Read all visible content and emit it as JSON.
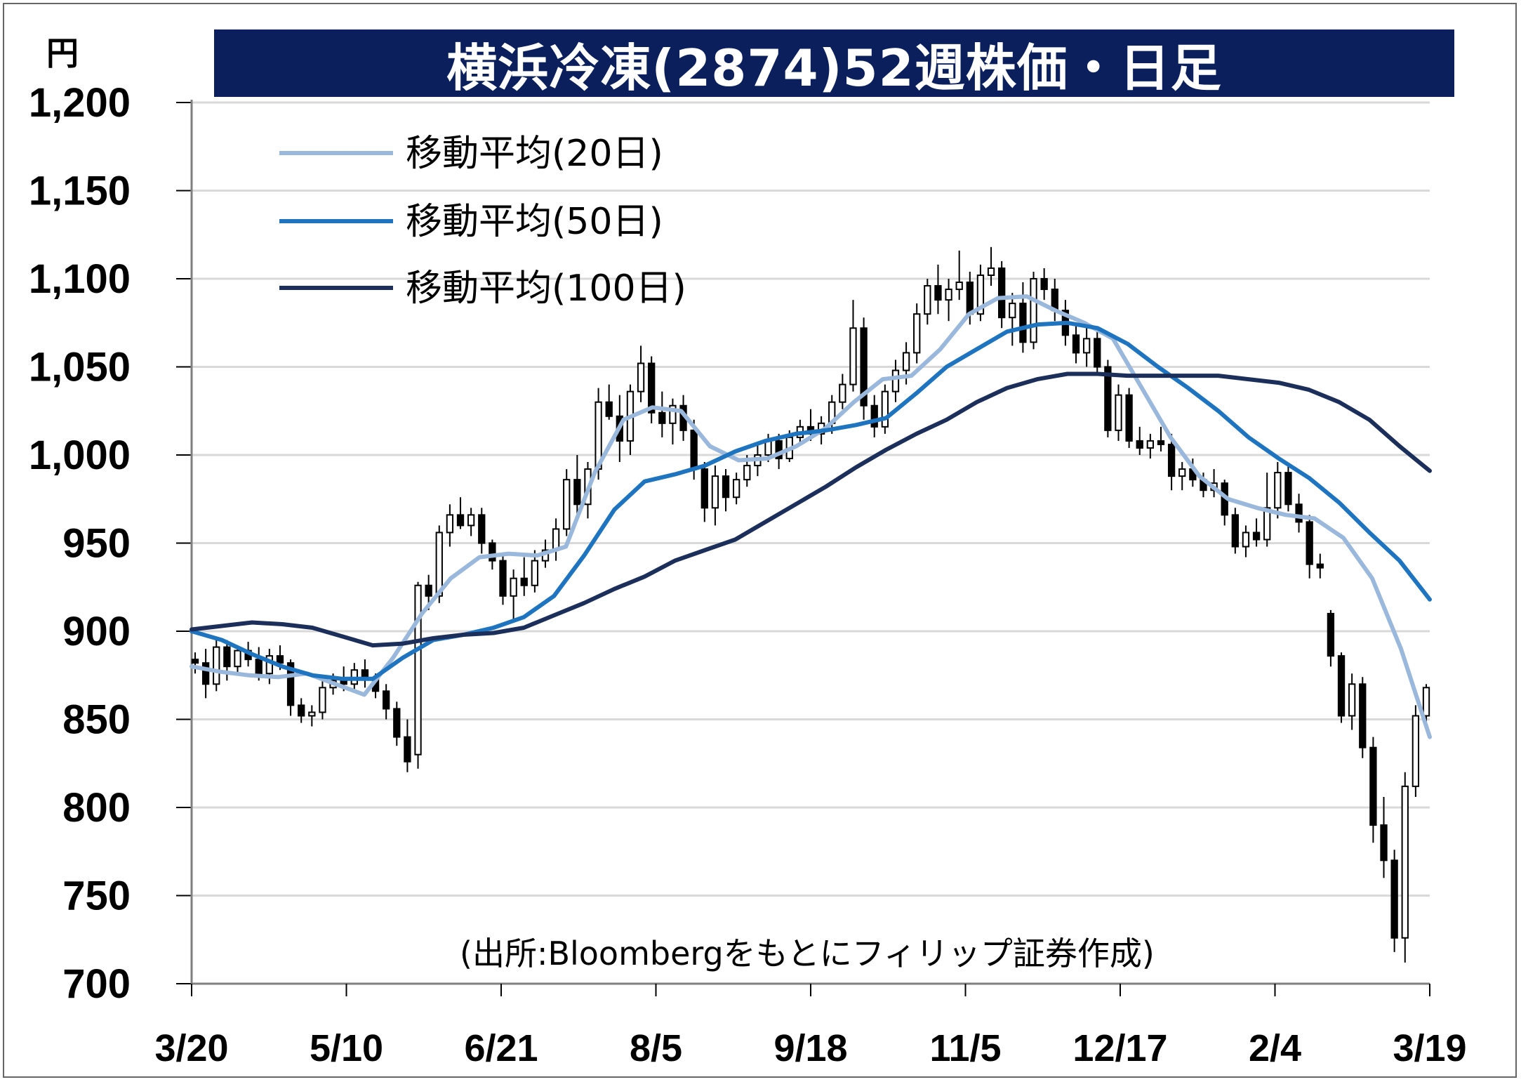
{
  "header": {
    "title": "横浜冷凍(2874)52週株価・日足",
    "unit": "円"
  },
  "source_note": "(出所:Bloombergをもとにフィリップ証券作成)",
  "colors": {
    "title_bg": "#0a1f5c",
    "ma20": "#9ab8dc",
    "ma50": "#1f74c0",
    "ma100": "#1b2f5a",
    "candle": "#000000",
    "grid": "#d9d9d9"
  },
  "chart_data": {
    "type": "candlestick",
    "title": "横浜冷凍(2874)52週株価・日足",
    "ylabel": "円",
    "ylim": [
      700,
      1200
    ],
    "yticks": [
      700,
      750,
      800,
      850,
      900,
      950,
      1000,
      1050,
      1100,
      1150,
      1200
    ],
    "ytick_labels": [
      "700",
      "750",
      "800",
      "850",
      "900",
      "950",
      "1,000",
      "1,050",
      "1,100",
      "1,150",
      "1,200"
    ],
    "xticks": [
      "3/20",
      "5/10",
      "6/21",
      "8/5",
      "9/18",
      "11/5",
      "12/17",
      "2/4",
      "3/19"
    ],
    "grid": true,
    "legend_position": "top-left",
    "series": [
      {
        "name": "移動平均(20日)",
        "type": "line",
        "color": "#9ab8dc",
        "values": [
          880,
          877,
          875,
          874,
          876,
          870,
          864,
          885,
          910,
          930,
          942,
          944,
          943,
          948,
          990,
          1020,
          1027,
          1025,
          1005,
          997,
          998,
          1005,
          1015,
          1030,
          1043,
          1045,
          1060,
          1080,
          1089,
          1090,
          1082,
          1075,
          1066,
          1038,
          1010,
          988,
          975,
          970,
          966,
          964,
          953,
          930,
          890,
          840
        ]
      },
      {
        "name": "移動平均(50日)",
        "type": "line",
        "color": "#1f74c0",
        "values": [
          900,
          895,
          887,
          880,
          875,
          873,
          873,
          885,
          895,
          898,
          902,
          908,
          920,
          943,
          969,
          985,
          989,
          994,
          1002,
          1008,
          1012,
          1014,
          1017,
          1021,
          1035,
          1050,
          1060,
          1070,
          1074,
          1075,
          1072,
          1063,
          1050,
          1038,
          1025,
          1010,
          998,
          987,
          973,
          956,
          940,
          918
        ]
      },
      {
        "name": "移動平均(100日)",
        "type": "line",
        "color": "#1b2f5a",
        "values": [
          901,
          903,
          905,
          904,
          902,
          897,
          892,
          893,
          896,
          898,
          899,
          902,
          909,
          916,
          924,
          931,
          940,
          946,
          952,
          962,
          972,
          982,
          993,
          1003,
          1012,
          1020,
          1030,
          1038,
          1043,
          1046,
          1046,
          1045,
          1045,
          1045,
          1045,
          1043,
          1041,
          1037,
          1030,
          1020,
          1005,
          991
        ]
      }
    ],
    "candles": [
      [
        884,
        888,
        876,
        882
      ],
      [
        882,
        890,
        862,
        870
      ],
      [
        870,
        896,
        866,
        891
      ],
      [
        891,
        895,
        872,
        880
      ],
      [
        880,
        892,
        876,
        889
      ],
      [
        889,
        894,
        880,
        884
      ],
      [
        884,
        891,
        872,
        876
      ],
      [
        876,
        890,
        870,
        886
      ],
      [
        886,
        892,
        878,
        882
      ],
      [
        882,
        884,
        852,
        858
      ],
      [
        858,
        862,
        848,
        852
      ],
      [
        852,
        858,
        846,
        854
      ],
      [
        854,
        874,
        850,
        868
      ],
      [
        868,
        876,
        864,
        872
      ],
      [
        872,
        880,
        866,
        870
      ],
      [
        870,
        882,
        866,
        878
      ],
      [
        878,
        884,
        868,
        873
      ],
      [
        873,
        876,
        862,
        866
      ],
      [
        866,
        870,
        850,
        856
      ],
      [
        856,
        860,
        835,
        840
      ],
      [
        840,
        850,
        820,
        826
      ],
      [
        830,
        928,
        822,
        926
      ],
      [
        926,
        932,
        912,
        920
      ],
      [
        920,
        960,
        916,
        956
      ],
      [
        956,
        972,
        948,
        966
      ],
      [
        966,
        976,
        958,
        960
      ],
      [
        960,
        970,
        954,
        966
      ],
      [
        966,
        970,
        944,
        950
      ],
      [
        950,
        952,
        935,
        940
      ],
      [
        940,
        944,
        915,
        920
      ],
      [
        920,
        935,
        906,
        930
      ],
      [
        930,
        942,
        920,
        926
      ],
      [
        926,
        946,
        922,
        940
      ],
      [
        940,
        952,
        936,
        946
      ],
      [
        946,
        964,
        940,
        958
      ],
      [
        958,
        992,
        954,
        986
      ],
      [
        986,
        1000,
        966,
        972
      ],
      [
        972,
        996,
        964,
        992
      ],
      [
        992,
        1038,
        986,
        1030
      ],
      [
        1030,
        1040,
        1020,
        1022
      ],
      [
        1022,
        1034,
        996,
        1008
      ],
      [
        1008,
        1040,
        1000,
        1036
      ],
      [
        1036,
        1062,
        1030,
        1052
      ],
      [
        1052,
        1056,
        1018,
        1024
      ],
      [
        1024,
        1036,
        1010,
        1018
      ],
      [
        1018,
        1032,
        1006,
        1028
      ],
      [
        1028,
        1034,
        1008,
        1014
      ],
      [
        1014,
        1020,
        986,
        992
      ],
      [
        992,
        996,
        962,
        970
      ],
      [
        970,
        994,
        960,
        988
      ],
      [
        988,
        992,
        968,
        976
      ],
      [
        976,
        990,
        972,
        986
      ],
      [
        986,
        1000,
        982,
        994
      ],
      [
        994,
        1006,
        988,
        1000
      ],
      [
        1000,
        1012,
        996,
        1008
      ],
      [
        1008,
        1012,
        992,
        998
      ],
      [
        998,
        1014,
        996,
        1010
      ],
      [
        1010,
        1020,
        1006,
        1016
      ],
      [
        1016,
        1026,
        1008,
        1012
      ],
      [
        1012,
        1022,
        1006,
        1018
      ],
      [
        1018,
        1034,
        1012,
        1030
      ],
      [
        1030,
        1046,
        1026,
        1040
      ],
      [
        1040,
        1088,
        1036,
        1072
      ],
      [
        1072,
        1078,
        1020,
        1028
      ],
      [
        1028,
        1034,
        1010,
        1016
      ],
      [
        1016,
        1040,
        1012,
        1036
      ],
      [
        1036,
        1054,
        1030,
        1048
      ],
      [
        1048,
        1064,
        1040,
        1058
      ],
      [
        1058,
        1086,
        1052,
        1080
      ],
      [
        1080,
        1100,
        1074,
        1096
      ],
      [
        1096,
        1108,
        1080,
        1088
      ],
      [
        1088,
        1100,
        1076,
        1094
      ],
      [
        1094,
        1116,
        1088,
        1098
      ],
      [
        1098,
        1104,
        1074,
        1080
      ],
      [
        1080,
        1108,
        1076,
        1102
      ],
      [
        1102,
        1118,
        1096,
        1106
      ],
      [
        1106,
        1110,
        1072,
        1078
      ],
      [
        1078,
        1092,
        1062,
        1086
      ],
      [
        1086,
        1098,
        1058,
        1064
      ],
      [
        1064,
        1104,
        1060,
        1100
      ],
      [
        1100,
        1106,
        1088,
        1094
      ],
      [
        1094,
        1100,
        1076,
        1082
      ],
      [
        1082,
        1088,
        1062,
        1068
      ],
      [
        1068,
        1074,
        1052,
        1058
      ],
      [
        1058,
        1072,
        1050,
        1066
      ],
      [
        1066,
        1070,
        1046,
        1050
      ],
      [
        1050,
        1054,
        1010,
        1014
      ],
      [
        1014,
        1040,
        1008,
        1034
      ],
      [
        1034,
        1038,
        1004,
        1008
      ],
      [
        1008,
        1016,
        1000,
        1004
      ],
      [
        1004,
        1012,
        998,
        1008
      ],
      [
        1008,
        1016,
        1002,
        1006
      ],
      [
        1006,
        1012,
        980,
        988
      ],
      [
        988,
        996,
        980,
        992
      ],
      [
        992,
        998,
        982,
        986
      ],
      [
        986,
        990,
        976,
        980
      ],
      [
        980,
        992,
        976,
        984
      ],
      [
        984,
        986,
        960,
        966
      ],
      [
        966,
        970,
        944,
        948
      ],
      [
        948,
        960,
        942,
        956
      ],
      [
        956,
        964,
        948,
        952
      ],
      [
        952,
        990,
        948,
        970
      ],
      [
        970,
        996,
        964,
        990
      ],
      [
        990,
        994,
        968,
        972
      ],
      [
        972,
        978,
        956,
        962
      ],
      [
        962,
        966,
        930,
        938
      ],
      [
        938,
        944,
        930,
        936
      ],
      [
        910,
        912,
        880,
        886
      ],
      [
        886,
        888,
        848,
        852
      ],
      [
        852,
        876,
        844,
        870
      ],
      [
        870,
        874,
        828,
        834
      ],
      [
        834,
        840,
        780,
        790
      ],
      [
        790,
        806,
        760,
        770
      ],
      [
        770,
        776,
        718,
        726
      ],
      [
        726,
        820,
        712,
        812
      ],
      [
        812,
        858,
        806,
        852
      ],
      [
        852,
        870,
        846,
        868
      ]
    ]
  }
}
